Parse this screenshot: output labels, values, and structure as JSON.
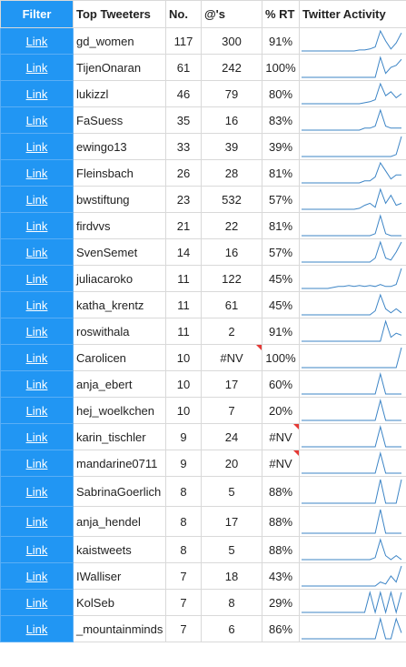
{
  "header": {
    "filter": "Filter",
    "tweeter": "Top Tweeters",
    "no": "No.",
    "mentions": "@'s",
    "rt": "% RT",
    "activity": "Twitter Activity"
  },
  "colors": {
    "filter_bg": "#2196f3",
    "spark": "#3d85c6",
    "flag": "#e53935"
  },
  "rows": [
    {
      "link": "Link",
      "name": "gd_women",
      "no": "117",
      "mentions": "300",
      "rt": "91%",
      "spark": [
        0,
        0,
        0,
        0,
        0,
        0,
        0,
        0,
        0,
        0,
        0,
        0.05,
        0.05,
        0.1,
        0.2,
        1,
        0.5,
        0.1,
        0.4,
        0.9
      ]
    },
    {
      "link": "Link",
      "name": "TijenOnaran",
      "no": "61",
      "mentions": "242",
      "rt": "100%",
      "spark": [
        0,
        0,
        0,
        0,
        0,
        0,
        0,
        0,
        0,
        0,
        0,
        0,
        0,
        0,
        0,
        1,
        0.2,
        0.5,
        0.6,
        0.9
      ]
    },
    {
      "link": "Link",
      "name": "lukizzl",
      "no": "46",
      "mentions": "79",
      "rt": "80%",
      "spark": [
        0,
        0,
        0,
        0,
        0,
        0,
        0,
        0,
        0,
        0,
        0,
        0,
        0.05,
        0.1,
        0.2,
        1,
        0.4,
        0.6,
        0.3,
        0.5
      ]
    },
    {
      "link": "Link",
      "name": "FaSuess",
      "no": "35",
      "mentions": "16",
      "rt": "83%",
      "spark": [
        0,
        0,
        0,
        0,
        0,
        0,
        0,
        0,
        0,
        0,
        0,
        0,
        0.1,
        0.1,
        0.2,
        1,
        0.2,
        0.1,
        0.1,
        0.1
      ]
    },
    {
      "link": "Link",
      "name": "ewingo13",
      "no": "33",
      "mentions": "39",
      "rt": "39%",
      "spark": [
        0,
        0,
        0,
        0,
        0,
        0,
        0,
        0,
        0,
        0,
        0,
        0,
        0,
        0,
        0,
        0,
        0,
        0,
        0.1,
        1
      ]
    },
    {
      "link": "Link",
      "name": "Fleinsbach",
      "no": "26",
      "mentions": "28",
      "rt": "81%",
      "spark": [
        0,
        0,
        0,
        0,
        0,
        0,
        0,
        0,
        0,
        0,
        0,
        0,
        0.1,
        0.1,
        0.3,
        1,
        0.6,
        0.2,
        0.4,
        0.4
      ]
    },
    {
      "link": "Link",
      "name": "bwstiftung",
      "no": "23",
      "mentions": "532",
      "rt": "57%",
      "spark": [
        0,
        0,
        0,
        0,
        0,
        0,
        0,
        0,
        0,
        0,
        0,
        0.05,
        0.2,
        0.3,
        0.1,
        1,
        0.3,
        0.7,
        0.2,
        0.3
      ]
    },
    {
      "link": "Link",
      "name": "firdvvs",
      "no": "21",
      "mentions": "22",
      "rt": "81%",
      "spark": [
        0,
        0,
        0,
        0,
        0,
        0,
        0,
        0,
        0,
        0,
        0,
        0,
        0,
        0,
        0.1,
        1,
        0.1,
        0,
        0,
        0
      ]
    },
    {
      "link": "Link",
      "name": "SvenSemet",
      "no": "14",
      "mentions": "16",
      "rt": "57%",
      "spark": [
        0,
        0,
        0,
        0,
        0,
        0,
        0,
        0,
        0,
        0,
        0,
        0,
        0,
        0,
        0.2,
        1,
        0.2,
        0.1,
        0.5,
        1
      ]
    },
    {
      "link": "Link",
      "name": "juliacaroko",
      "no": "11",
      "mentions": "122",
      "rt": "45%",
      "spark": [
        0,
        0,
        0,
        0,
        0,
        0,
        0.05,
        0.1,
        0.1,
        0.15,
        0.1,
        0.15,
        0.1,
        0.15,
        0.1,
        0.2,
        0.1,
        0.1,
        0.2,
        1
      ]
    },
    {
      "link": "Link",
      "name": "katha_krentz",
      "no": "11",
      "mentions": "61",
      "rt": "45%",
      "spark": [
        0,
        0,
        0,
        0,
        0,
        0,
        0,
        0,
        0,
        0,
        0,
        0,
        0,
        0,
        0.2,
        1,
        0.3,
        0.1,
        0.3,
        0.1
      ]
    },
    {
      "link": "Link",
      "name": "roswithala",
      "no": "11",
      "mentions": "2",
      "rt": "91%",
      "spark": [
        0,
        0,
        0,
        0,
        0,
        0,
        0,
        0,
        0,
        0,
        0,
        0,
        0,
        0,
        0,
        0,
        1,
        0.2,
        0.4,
        0.3
      ]
    },
    {
      "link": "Link",
      "name": "Carolicen",
      "no": "10",
      "mentions": "#NV",
      "rt": "100%",
      "flag": "mentions",
      "spark": [
        0,
        0,
        0,
        0,
        0,
        0,
        0,
        0,
        0,
        0,
        0,
        0,
        0,
        0,
        0,
        0,
        0,
        0,
        0,
        1
      ]
    },
    {
      "link": "Link",
      "name": "anja_ebert",
      "no": "10",
      "mentions": "17",
      "rt": "60%",
      "spark": [
        0,
        0,
        0,
        0,
        0,
        0,
        0,
        0,
        0,
        0,
        0,
        0,
        0,
        0,
        0,
        1,
        0,
        0,
        0,
        0
      ]
    },
    {
      "link": "Link",
      "name": "hej_woelkchen",
      "no": "10",
      "mentions": "7",
      "rt": "20%",
      "spark": [
        0,
        0,
        0,
        0,
        0,
        0,
        0,
        0,
        0,
        0,
        0,
        0,
        0,
        0,
        0,
        1,
        0,
        0,
        0,
        0
      ]
    },
    {
      "link": "Link",
      "name": "karin_tischler",
      "no": "9",
      "mentions": "24",
      "rt": "#NV",
      "flag": "rt",
      "spark": [
        0,
        0,
        0,
        0,
        0,
        0,
        0,
        0,
        0,
        0,
        0,
        0,
        0,
        0,
        0,
        1,
        0,
        0,
        0,
        0
      ]
    },
    {
      "link": "Link",
      "name": "mandarine0711",
      "no": "9",
      "mentions": "20",
      "rt": "#NV",
      "flag": "rt",
      "spark": [
        0,
        0,
        0,
        0,
        0,
        0,
        0,
        0,
        0,
        0,
        0,
        0,
        0,
        0,
        0,
        1,
        0,
        0,
        0,
        0
      ]
    },
    {
      "link": "Link",
      "name": "SabrinaGoerlich",
      "no": "8",
      "mentions": "5",
      "rt": "88%",
      "tall": true,
      "spark": [
        0,
        0,
        0,
        0,
        0,
        0,
        0,
        0,
        0,
        0,
        0,
        0,
        0,
        0,
        0,
        1,
        0,
        0,
        0,
        1
      ]
    },
    {
      "link": "Link",
      "name": "anja_hendel",
      "no": "8",
      "mentions": "17",
      "rt": "88%",
      "tall": true,
      "spark": [
        0,
        0,
        0,
        0,
        0,
        0,
        0,
        0,
        0,
        0,
        0,
        0,
        0,
        0,
        0,
        1,
        0,
        0,
        0,
        0
      ]
    },
    {
      "link": "Link",
      "name": "kaistweets",
      "no": "8",
      "mentions": "5",
      "rt": "88%",
      "spark": [
        0,
        0,
        0,
        0,
        0,
        0,
        0,
        0,
        0,
        0,
        0,
        0,
        0,
        0,
        0.1,
        1,
        0.2,
        0,
        0.2,
        0
      ]
    },
    {
      "link": "Link",
      "name": "IWalliser",
      "no": "7",
      "mentions": "18",
      "rt": "43%",
      "spark": [
        0,
        0,
        0,
        0,
        0,
        0,
        0,
        0,
        0,
        0,
        0,
        0,
        0,
        0,
        0,
        0.2,
        0.1,
        0.5,
        0.2,
        1
      ]
    },
    {
      "link": "Link",
      "name": "KolSeb",
      "no": "7",
      "mentions": "8",
      "rt": "29%",
      "spark": [
        0,
        0,
        0,
        0,
        0,
        0,
        0,
        0,
        0,
        0,
        0,
        0,
        0,
        1,
        0,
        1,
        0,
        1,
        0,
        1
      ]
    },
    {
      "link": "Link",
      "name": "_mountainminds",
      "no": "7",
      "mentions": "6",
      "rt": "86%",
      "spark": [
        0,
        0,
        0,
        0,
        0,
        0,
        0,
        0,
        0,
        0,
        0,
        0,
        0,
        0,
        0,
        1,
        0,
        0,
        1,
        0.3
      ]
    }
  ]
}
